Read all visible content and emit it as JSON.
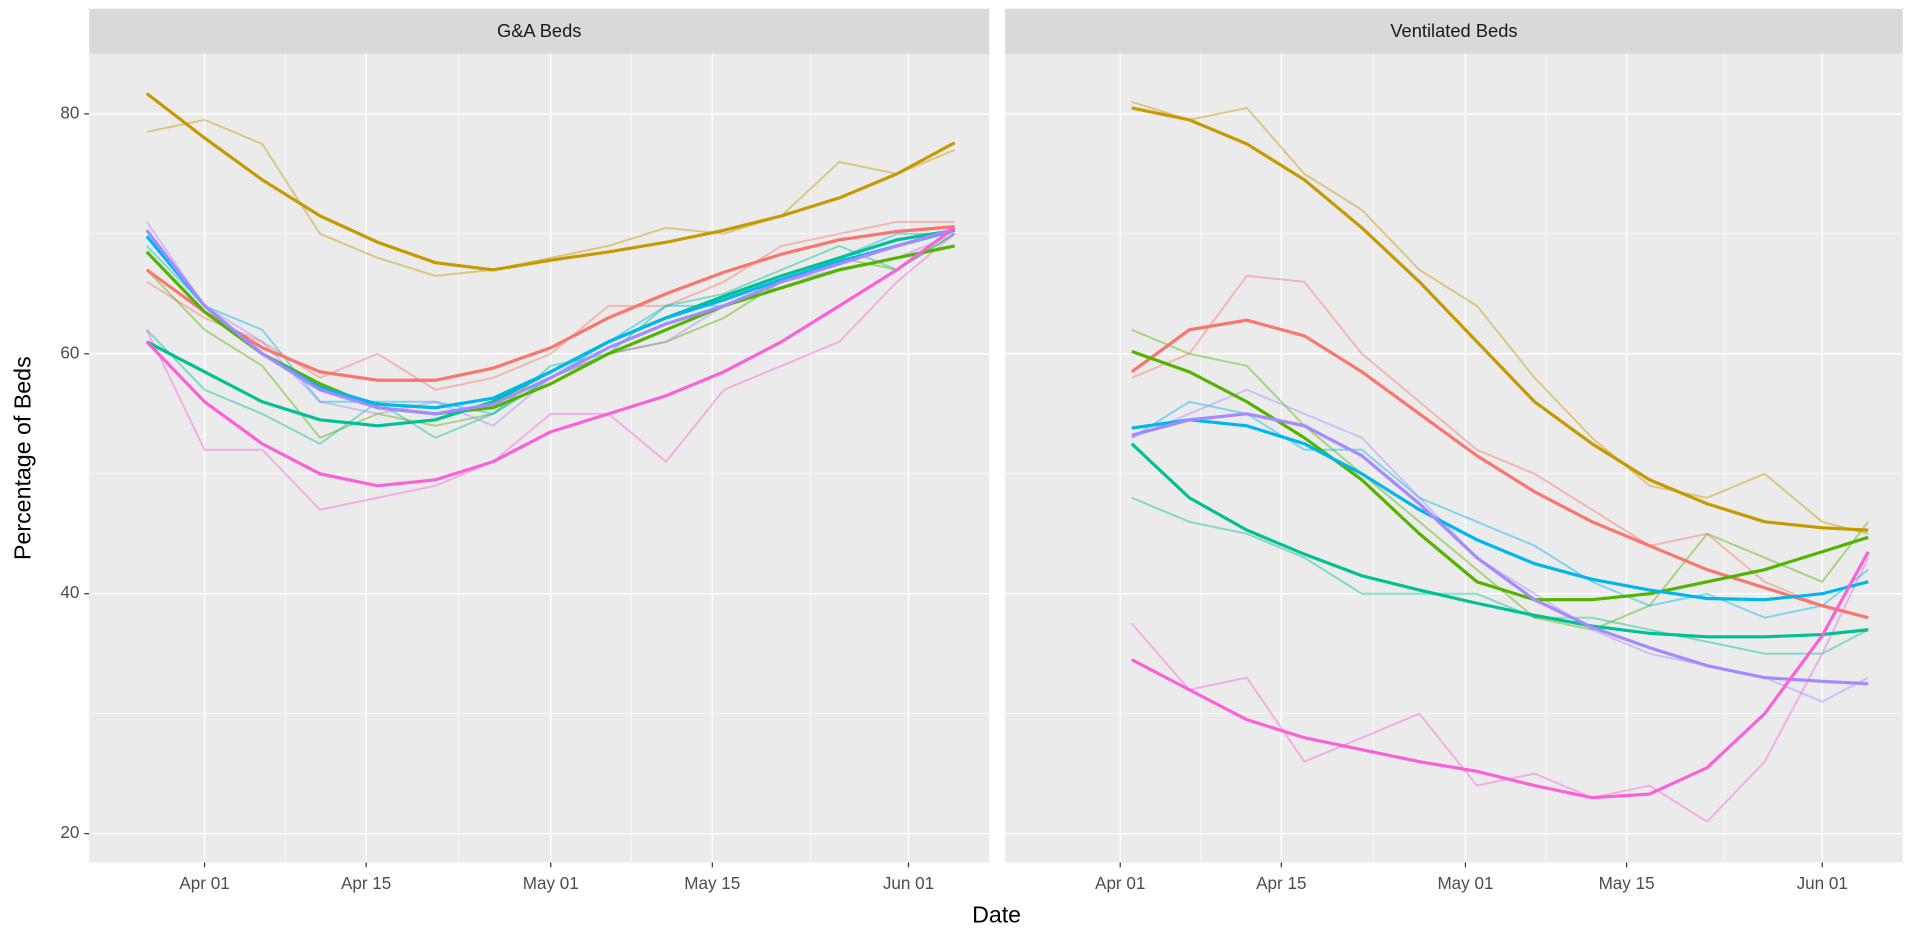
{
  "x_axis_label": "Date",
  "y_axis_label": "Percentage of Beds",
  "chart_data": [
    {
      "type": "line",
      "title": "G&A Beds",
      "x": [
        "Mar 27",
        "Apr 01",
        "Apr 06",
        "Apr 11",
        "Apr 16",
        "Apr 21",
        "Apr 26",
        "May 01",
        "May 06",
        "May 11",
        "May 16",
        "May 21",
        "May 26",
        "May 31",
        "Jun 05"
      ],
      "xlim": [
        "Mar 22",
        "Jun 08"
      ],
      "xticks": [
        "Apr 01",
        "Apr 15",
        "May 01",
        "May 15",
        "Jun 01"
      ],
      "ylim": [
        17.6,
        85
      ],
      "yticks": [
        20,
        40,
        60,
        80
      ],
      "grid": true,
      "series": [
        {
          "color": "#F8766D",
          "values": [
            66,
            63,
            61,
            58,
            60,
            57,
            58,
            60,
            64,
            64,
            66,
            69,
            70,
            71,
            71
          ],
          "trend": [
            67,
            63.5,
            60.5,
            58.5,
            57.8,
            57.8,
            58.8,
            60.5,
            63,
            65,
            66.8,
            68.3,
            69.5,
            70.2,
            70.6
          ]
        },
        {
          "color": "#C49A00",
          "values": [
            78.5,
            79.5,
            77.5,
            70,
            68,
            66.5,
            67,
            68,
            69,
            70.5,
            70,
            71.5,
            76,
            75,
            77
          ],
          "trend": [
            81.7,
            78,
            74.5,
            71.5,
            69.3,
            67.6,
            67,
            67.8,
            68.5,
            69.3,
            70.3,
            71.5,
            73,
            75,
            77.6
          ]
        },
        {
          "color": "#53B400",
          "values": [
            67,
            62,
            59,
            53,
            55,
            54,
            55,
            58,
            60,
            61,
            63,
            66,
            68,
            67,
            70
          ],
          "trend": [
            68.5,
            63.5,
            60,
            57.5,
            55.5,
            55,
            55.5,
            57.5,
            60,
            62,
            64,
            65.5,
            67,
            68,
            69
          ]
        },
        {
          "color": "#00C094",
          "values": [
            62,
            57,
            55,
            52.5,
            56,
            53,
            55,
            59,
            60,
            64,
            65,
            67,
            69,
            67,
            70
          ],
          "trend": [
            61,
            58.5,
            56,
            54.5,
            54,
            54.5,
            56,
            58.5,
            61,
            63,
            64.8,
            66.5,
            68,
            69.5,
            70.3
          ]
        },
        {
          "color": "#00B6EB",
          "values": [
            69,
            64,
            62,
            56,
            56,
            56,
            55,
            58,
            61,
            64,
            64,
            66,
            68,
            70,
            70
          ],
          "trend": [
            69.8,
            64,
            60,
            57.2,
            55.8,
            55.5,
            56.3,
            58.5,
            61,
            63,
            64.5,
            66.2,
            67.7,
            69,
            70.3
          ]
        },
        {
          "color": "#A58AFF",
          "values": [
            71,
            64,
            61,
            56,
            55,
            56,
            54,
            58,
            60,
            61,
            64,
            66,
            67,
            68,
            70
          ],
          "trend": [
            70.3,
            64,
            60,
            57,
            55.5,
            55,
            55.8,
            58,
            60.5,
            62.5,
            64,
            66,
            67.5,
            69,
            70.4
          ]
        },
        {
          "color": "#FB61D7",
          "values": [
            62,
            52,
            52,
            47,
            48,
            49,
            51,
            55,
            55,
            51,
            57,
            59,
            61,
            66,
            70
          ],
          "trend": [
            61,
            56,
            52.5,
            50,
            49,
            49.5,
            51,
            53.5,
            55,
            56.5,
            58.5,
            61,
            64,
            67,
            70.5
          ]
        }
      ]
    },
    {
      "type": "line",
      "title": "Ventilated Beds",
      "x": [
        "Apr 02",
        "Apr 07",
        "Apr 12",
        "Apr 17",
        "Apr 22",
        "Apr 27",
        "May 02",
        "May 07",
        "May 12",
        "May 17",
        "May 22",
        "May 27",
        "Jun 01",
        "Jun 05"
      ],
      "xlim": [
        "Mar 22",
        "Jun 08"
      ],
      "xticks": [
        "Apr 01",
        "Apr 15",
        "May 01",
        "May 15",
        "Jun 01"
      ],
      "ylim": [
        17.6,
        85
      ],
      "yticks": [
        20,
        40,
        60,
        80
      ],
      "grid": true,
      "series": [
        {
          "color": "#F8766D",
          "values": [
            58,
            60,
            66.5,
            66,
            60,
            56,
            52,
            50,
            47,
            44,
            45,
            41,
            39,
            38
          ],
          "trend": [
            58.5,
            62,
            62.8,
            61.5,
            58.5,
            55,
            51.5,
            48.5,
            46,
            44,
            42,
            40.5,
            39,
            38
          ]
        },
        {
          "color": "#C49A00",
          "values": [
            81,
            79.5,
            80.5,
            75,
            72,
            67,
            64,
            58,
            53,
            49,
            48,
            50,
            46,
            45
          ],
          "trend": [
            80.5,
            79.5,
            77.5,
            74.5,
            70.5,
            66,
            61,
            56,
            52.5,
            49.5,
            47.5,
            46,
            45.5,
            45.3
          ]
        },
        {
          "color": "#53B400",
          "values": [
            62,
            60,
            59,
            54,
            50,
            46,
            42,
            38,
            37,
            39,
            45,
            43,
            41,
            46
          ],
          "trend": [
            60.2,
            58.5,
            56,
            53,
            49.5,
            45,
            41,
            39.5,
            39.5,
            40,
            41,
            42,
            43.5,
            44.7
          ]
        },
        {
          "color": "#00C094",
          "values": [
            48,
            46,
            45,
            43,
            40,
            40,
            40,
            38,
            38,
            37,
            36,
            35,
            35,
            37
          ],
          "trend": [
            52.5,
            48,
            45.3,
            43.3,
            41.5,
            40.3,
            39.2,
            38.2,
            37.3,
            36.7,
            36.4,
            36.4,
            36.6,
            37
          ]
        },
        {
          "color": "#00B6EB",
          "values": [
            53,
            56,
            55,
            52,
            52,
            48,
            46,
            44,
            41,
            39,
            40,
            38,
            39,
            42
          ],
          "trend": [
            53.8,
            54.5,
            54,
            52.5,
            50,
            47,
            44.5,
            42.5,
            41.2,
            40.3,
            39.6,
            39.5,
            40,
            41
          ]
        },
        {
          "color": "#A58AFF",
          "values": [
            53,
            55,
            57,
            55,
            53,
            48,
            43,
            40,
            37,
            35,
            34,
            33,
            31,
            33
          ],
          "trend": [
            53.2,
            54.5,
            55,
            54,
            51.5,
            47.5,
            43,
            39.5,
            37.2,
            35.5,
            34,
            33,
            32.7,
            32.5
          ]
        },
        {
          "color": "#FB61D7",
          "values": [
            37.5,
            32,
            33,
            26,
            28,
            30,
            24,
            25,
            23,
            24,
            21,
            26,
            35,
            43
          ],
          "trend": [
            34.5,
            32,
            29.5,
            28,
            27,
            26,
            25.2,
            24,
            23,
            23.3,
            25.5,
            30,
            36.5,
            43.5
          ]
        }
      ]
    }
  ]
}
